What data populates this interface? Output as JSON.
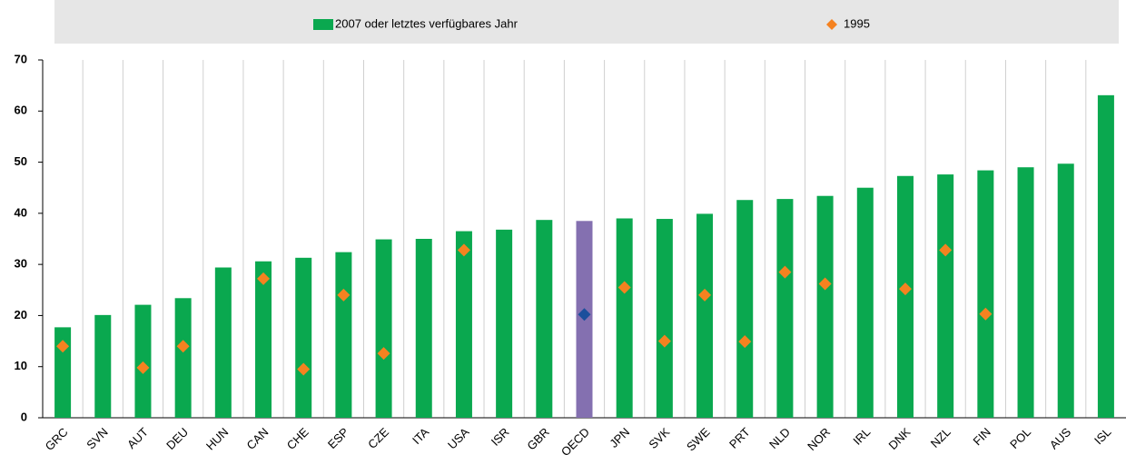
{
  "chart_data": {
    "type": "bar",
    "categories": [
      "GRC",
      "SVN",
      "AUT",
      "DEU",
      "HUN",
      "CAN",
      "CHE",
      "ESP",
      "CZE",
      "ITA",
      "USA",
      "ISR",
      "GBR",
      "OECD",
      "JPN",
      "SVK",
      "SWE",
      "PRT",
      "NLD",
      "NOR",
      "IRL",
      "DNK",
      "NZL",
      "FIN",
      "POL",
      "AUS",
      "ISL"
    ],
    "series": [
      {
        "name": "2007 oder letztes verfügbares Jahr",
        "type": "bar",
        "color": "#0aa84f",
        "colors": [
          "#0aa84f",
          "#0aa84f",
          "#0aa84f",
          "#0aa84f",
          "#0aa84f",
          "#0aa84f",
          "#0aa84f",
          "#0aa84f",
          "#0aa84f",
          "#0aa84f",
          "#0aa84f",
          "#0aa84f",
          "#0aa84f",
          "#8470b0",
          "#0aa84f",
          "#0aa84f",
          "#0aa84f",
          "#0aa84f",
          "#0aa84f",
          "#0aa84f",
          "#0aa84f",
          "#0aa84f",
          "#0aa84f",
          "#0aa84f",
          "#0aa84f",
          "#0aa84f",
          "#0aa84f"
        ],
        "values": [
          17.7,
          20.1,
          22.1,
          23.4,
          29.4,
          30.6,
          31.3,
          32.4,
          34.9,
          35.0,
          36.5,
          36.8,
          38.7,
          38.5,
          39.0,
          38.9,
          39.9,
          42.6,
          42.8,
          43.4,
          45.0,
          47.3,
          47.6,
          48.4,
          49.0,
          49.7,
          63.1
        ]
      },
      {
        "name": "1995",
        "type": "scatter",
        "color": "#f58220",
        "colors": [
          "#f58220",
          "#f58220",
          "#f58220",
          "#f58220",
          "#f58220",
          "#f58220",
          "#f58220",
          "#f58220",
          "#f58220",
          "#f58220",
          "#f58220",
          "#f58220",
          "#f58220",
          "#1b4f9c",
          "#f58220",
          "#f58220",
          "#f58220",
          "#f58220",
          "#f58220",
          "#f58220",
          "#f58220",
          "#f58220",
          "#f58220",
          "#f58220",
          "#f58220",
          "#f58220",
          "#f58220"
        ],
        "values": [
          14.0,
          null,
          9.8,
          14.0,
          null,
          27.2,
          9.5,
          24.0,
          12.6,
          null,
          32.8,
          null,
          null,
          20.2,
          25.5,
          15.0,
          24.0,
          14.9,
          28.5,
          26.2,
          null,
          25.2,
          32.8,
          20.3,
          null,
          null,
          null
        ]
      }
    ],
    "ylim": [
      0,
      70
    ],
    "yticks": [
      0,
      10,
      20,
      30,
      40,
      50,
      60,
      70
    ],
    "legend": "top"
  }
}
